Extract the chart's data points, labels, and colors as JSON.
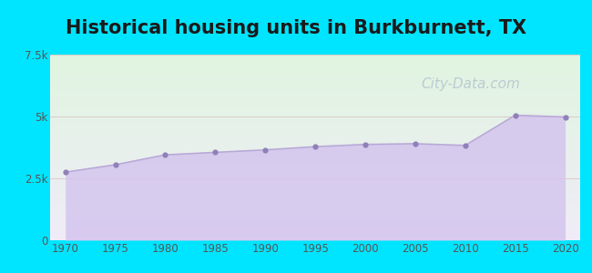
{
  "title": "Historical housing units in Burkburnett, TX",
  "title_fontsize": 15,
  "title_fontweight": "bold",
  "title_color": "#1a1a1a",
  "years": [
    1970,
    1975,
    1980,
    1985,
    1990,
    1995,
    2000,
    2005,
    2010,
    2015,
    2020
  ],
  "values": [
    2750,
    3050,
    3450,
    3550,
    3650,
    3780,
    3870,
    3900,
    3830,
    5050,
    4980
  ],
  "ylim": [
    0,
    7500
  ],
  "yticks": [
    0,
    2500,
    5000,
    7500
  ],
  "ytick_labels": [
    "0",
    "2.5k",
    "5k",
    "7.5k"
  ],
  "xticks": [
    1970,
    1975,
    1980,
    1985,
    1990,
    1995,
    2000,
    2005,
    2010,
    2015,
    2020
  ],
  "line_color": "#b8a8d8",
  "fill_color_top": "#d4c5ee",
  "fill_color_bottom": "#c8b8e5",
  "fill_alpha": 0.85,
  "marker_color": "#9080b8",
  "marker_size": 4.5,
  "bg_outer": "#00e5ff",
  "bg_top_color": "#e0f5e0",
  "bg_bottom_color": "#f0ecf8",
  "grid_color": "#cc9999",
  "grid_alpha": 0.5,
  "watermark": "City-Data.com",
  "watermark_color": "#aabbcc",
  "watermark_alpha": 0.7,
  "watermark_fontsize": 11,
  "tick_fontsize": 8.5,
  "tick_color": "#555555"
}
